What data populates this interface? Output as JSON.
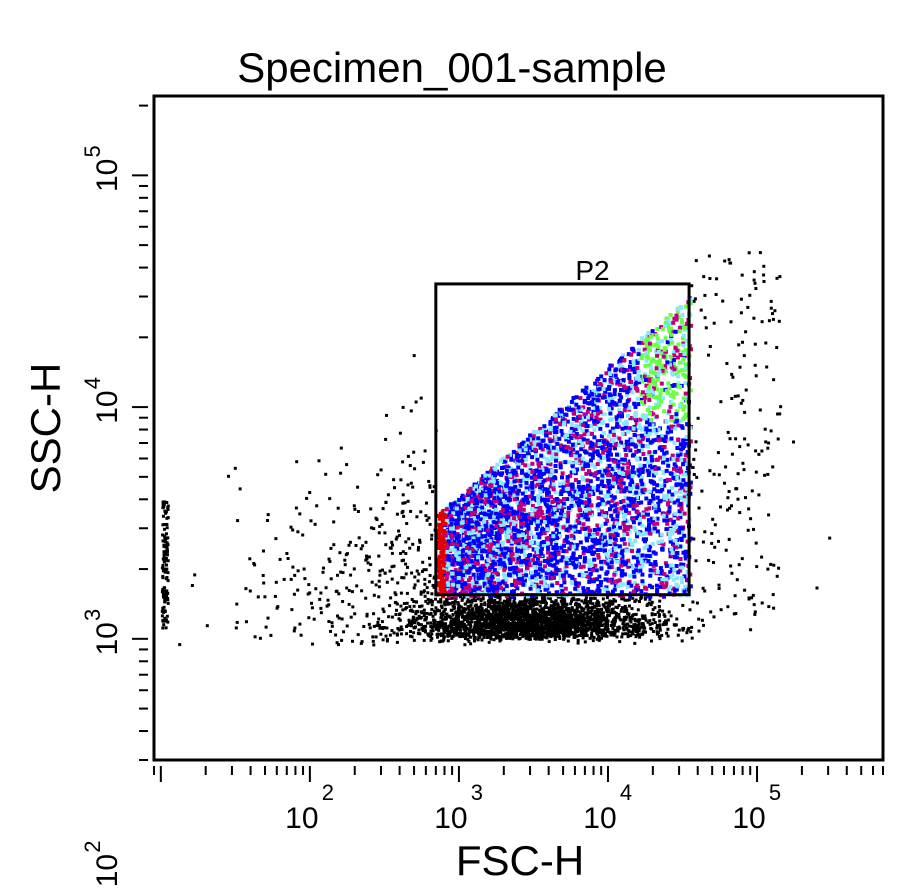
{
  "chart_data": {
    "type": "scatter",
    "title": "Specimen_001-sample",
    "xlabel": "FSC-H",
    "ylabel": "SSC-H",
    "x_scale": "log",
    "y_scale": "log",
    "xlim": [
      9,
      700000
    ],
    "ylim": [
      300,
      220000
    ],
    "x_ticks": [
      {
        "value": 100,
        "base": "10",
        "exp": "2"
      },
      {
        "value": 1000,
        "base": "10",
        "exp": "3"
      },
      {
        "value": 10000,
        "base": "10",
        "exp": "4"
      },
      {
        "value": 100000,
        "base": "10",
        "exp": "5"
      }
    ],
    "y_ticks": [
      {
        "value": 100,
        "base": "10",
        "exp": "2"
      },
      {
        "value": 1000,
        "base": "10",
        "exp": "3"
      },
      {
        "value": 10000,
        "base": "10",
        "exp": "4"
      },
      {
        "value": 100000,
        "base": "10",
        "exp": "5"
      }
    ],
    "gate": {
      "name": "P2",
      "x_range": [
        700,
        35000
      ],
      "y_range": [
        1550,
        34000
      ]
    },
    "grid": false,
    "legend": "none",
    "colors": {
      "outside": "#000000",
      "red": "#e00000",
      "blue": "#0000ff",
      "magenta": "#c0007a",
      "cyan": "#88e8ff",
      "green": "#66ff44"
    }
  }
}
